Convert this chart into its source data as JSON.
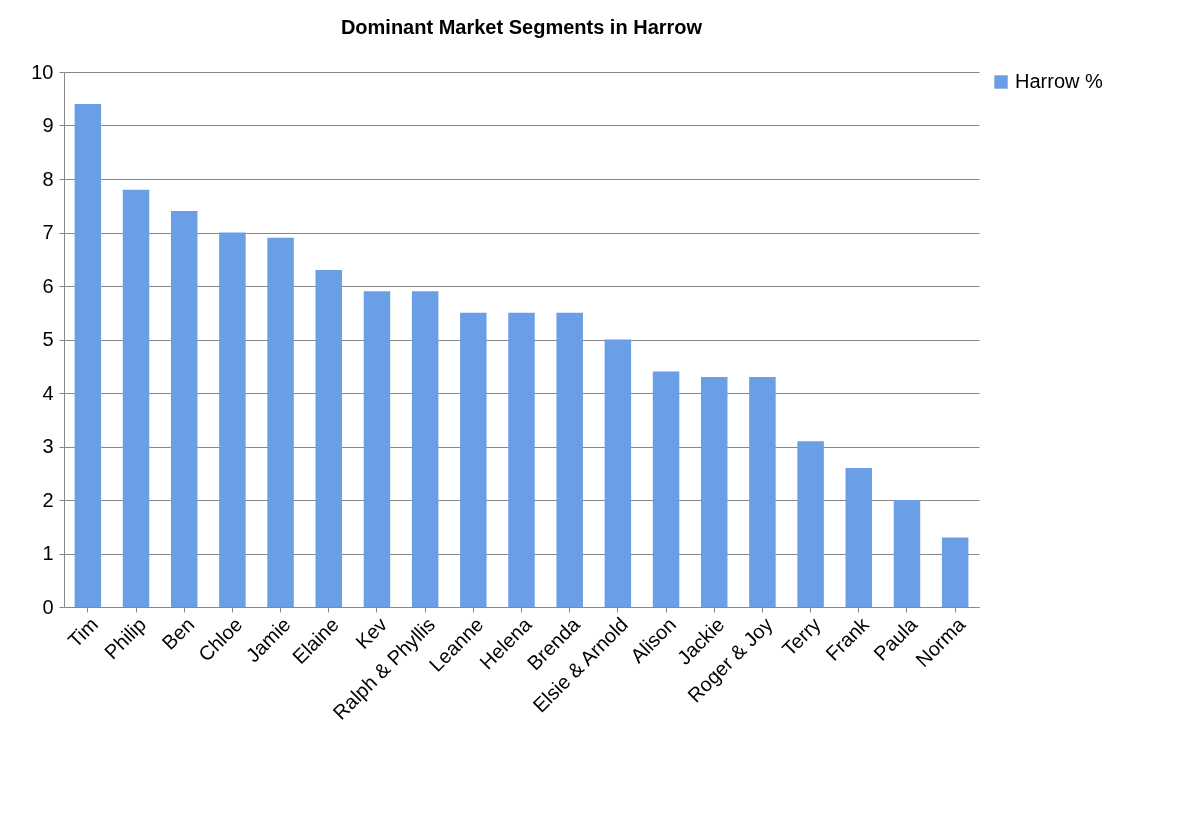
{
  "chart_data": {
    "type": "bar",
    "title": "Dominant Market Segments in Harrow",
    "categories": [
      "Tim",
      "Philip",
      "Ben",
      "Chloe",
      "Jamie",
      "Elaine",
      "Kev",
      "Ralph & Phyllis",
      "Leanne",
      "Helena",
      "Brenda",
      "Elsie & Arnold",
      "Alison",
      "Jackie",
      "Roger & Joy",
      "Terry",
      "Frank",
      "Paula",
      "Norma"
    ],
    "series": [
      {
        "name": "Harrow %",
        "color": "#6a9ee6",
        "values": [
          9.4,
          7.8,
          7.4,
          7.0,
          6.9,
          6.3,
          5.9,
          5.9,
          5.5,
          5.5,
          5.5,
          5.0,
          4.4,
          4.3,
          4.3,
          3.1,
          2.6,
          2.0,
          1.3
        ]
      }
    ],
    "ylim": [
      0,
      10
    ],
    "yticks": [
      0,
      1,
      2,
      3,
      4,
      5,
      6,
      7,
      8,
      9,
      10
    ],
    "grid": "y",
    "legend": "right"
  }
}
